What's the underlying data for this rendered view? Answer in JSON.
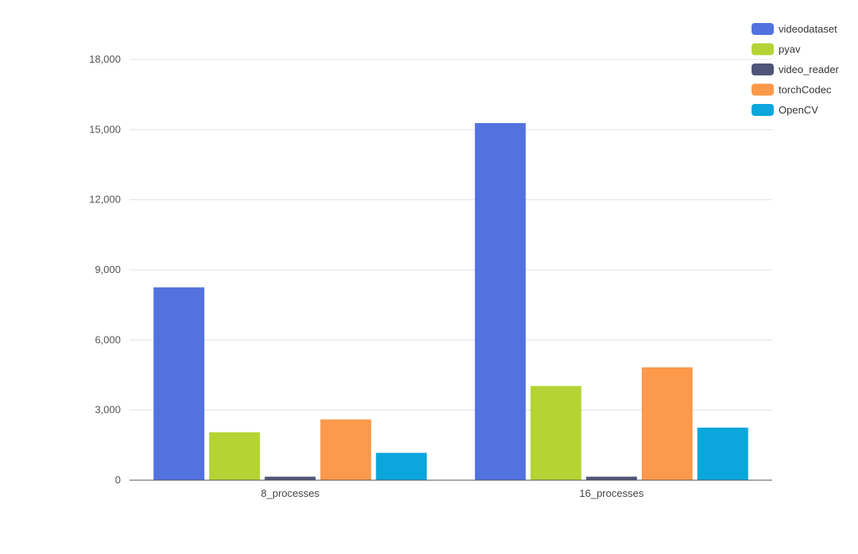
{
  "chart_data": {
    "type": "bar",
    "categories": [
      "8_processes",
      "16_processes"
    ],
    "series": [
      {
        "name": "videodataset",
        "values": [
          8250,
          15280
        ],
        "color": "#5272e0"
      },
      {
        "name": "pyav",
        "values": [
          2050,
          4030
        ],
        "color": "#b5d334"
      },
      {
        "name": "video_reader",
        "values": [
          150,
          150
        ],
        "color": "#4f5578"
      },
      {
        "name": "torchCodec",
        "values": [
          2600,
          4830
        ],
        "color": "#fd994a"
      },
      {
        "name": "OpenCV",
        "values": [
          1170,
          2250
        ],
        "color": "#0aa6dc"
      }
    ],
    "yticks": [
      "0",
      "3,000",
      "6,000",
      "9,000",
      "12,000",
      "15,000",
      "18,000"
    ],
    "ylim": [
      0,
      18000
    ],
    "grid": true,
    "legend_position": "top-right"
  }
}
